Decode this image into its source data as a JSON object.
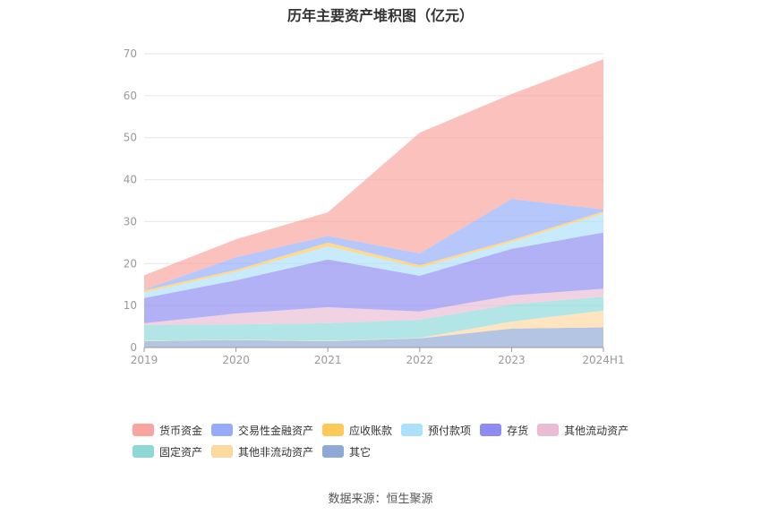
{
  "chart_data": {
    "type": "area",
    "stacked": true,
    "title": "历年主要资产堆积图（亿元）",
    "categories": [
      "2019",
      "2020",
      "2021",
      "2022",
      "2023",
      "2024H1"
    ],
    "ylim": [
      0,
      70
    ],
    "yticks": [
      0,
      10,
      20,
      30,
      40,
      50,
      60,
      70
    ],
    "grid": true,
    "legend_position": "bottom",
    "series": [
      {
        "name": "其它",
        "color": "#8fa9d6",
        "values": [
          1.5,
          1.8,
          1.5,
          2.2,
          4.5,
          4.8
        ]
      },
      {
        "name": "其他非流动资产",
        "color": "#fdd9a0",
        "values": [
          0.1,
          0.1,
          0.1,
          0.1,
          1.7,
          4.0
        ]
      },
      {
        "name": "固定资产",
        "color": "#8ed8d8",
        "values": [
          3.8,
          3.6,
          4.2,
          4.3,
          4.1,
          3.3
        ]
      },
      {
        "name": "其他流动资产",
        "color": "#ebbcd6",
        "values": [
          0.4,
          2.6,
          3.8,
          2.0,
          2.1,
          1.9
        ]
      },
      {
        "name": "存货",
        "color": "#8e8cf0",
        "values": [
          6.0,
          7.9,
          11.4,
          8.5,
          11.1,
          13.4
        ]
      },
      {
        "name": "预付款项",
        "color": "#ade0fb",
        "values": [
          1.3,
          2.0,
          3.1,
          1.9,
          1.6,
          4.5
        ]
      },
      {
        "name": "应收账款",
        "color": "#fdc95a",
        "values": [
          0.5,
          0.5,
          0.9,
          0.6,
          0.5,
          0.5
        ]
      },
      {
        "name": "交易性金融资产",
        "color": "#94acfa",
        "values": [
          0.2,
          3.0,
          1.6,
          2.8,
          9.8,
          0.5
        ]
      },
      {
        "name": "货币资金",
        "color": "#f9a49e",
        "values": [
          3.4,
          4.3,
          5.6,
          28.8,
          25.0,
          35.8
        ]
      }
    ],
    "legend_order": [
      "货币资金",
      "交易性金融资产",
      "应收账款",
      "预付款项",
      "存货",
      "其他流动资产",
      "固定资产",
      "其他非流动资产",
      "其它"
    ]
  },
  "source_label": "数据来源：恒生聚源"
}
